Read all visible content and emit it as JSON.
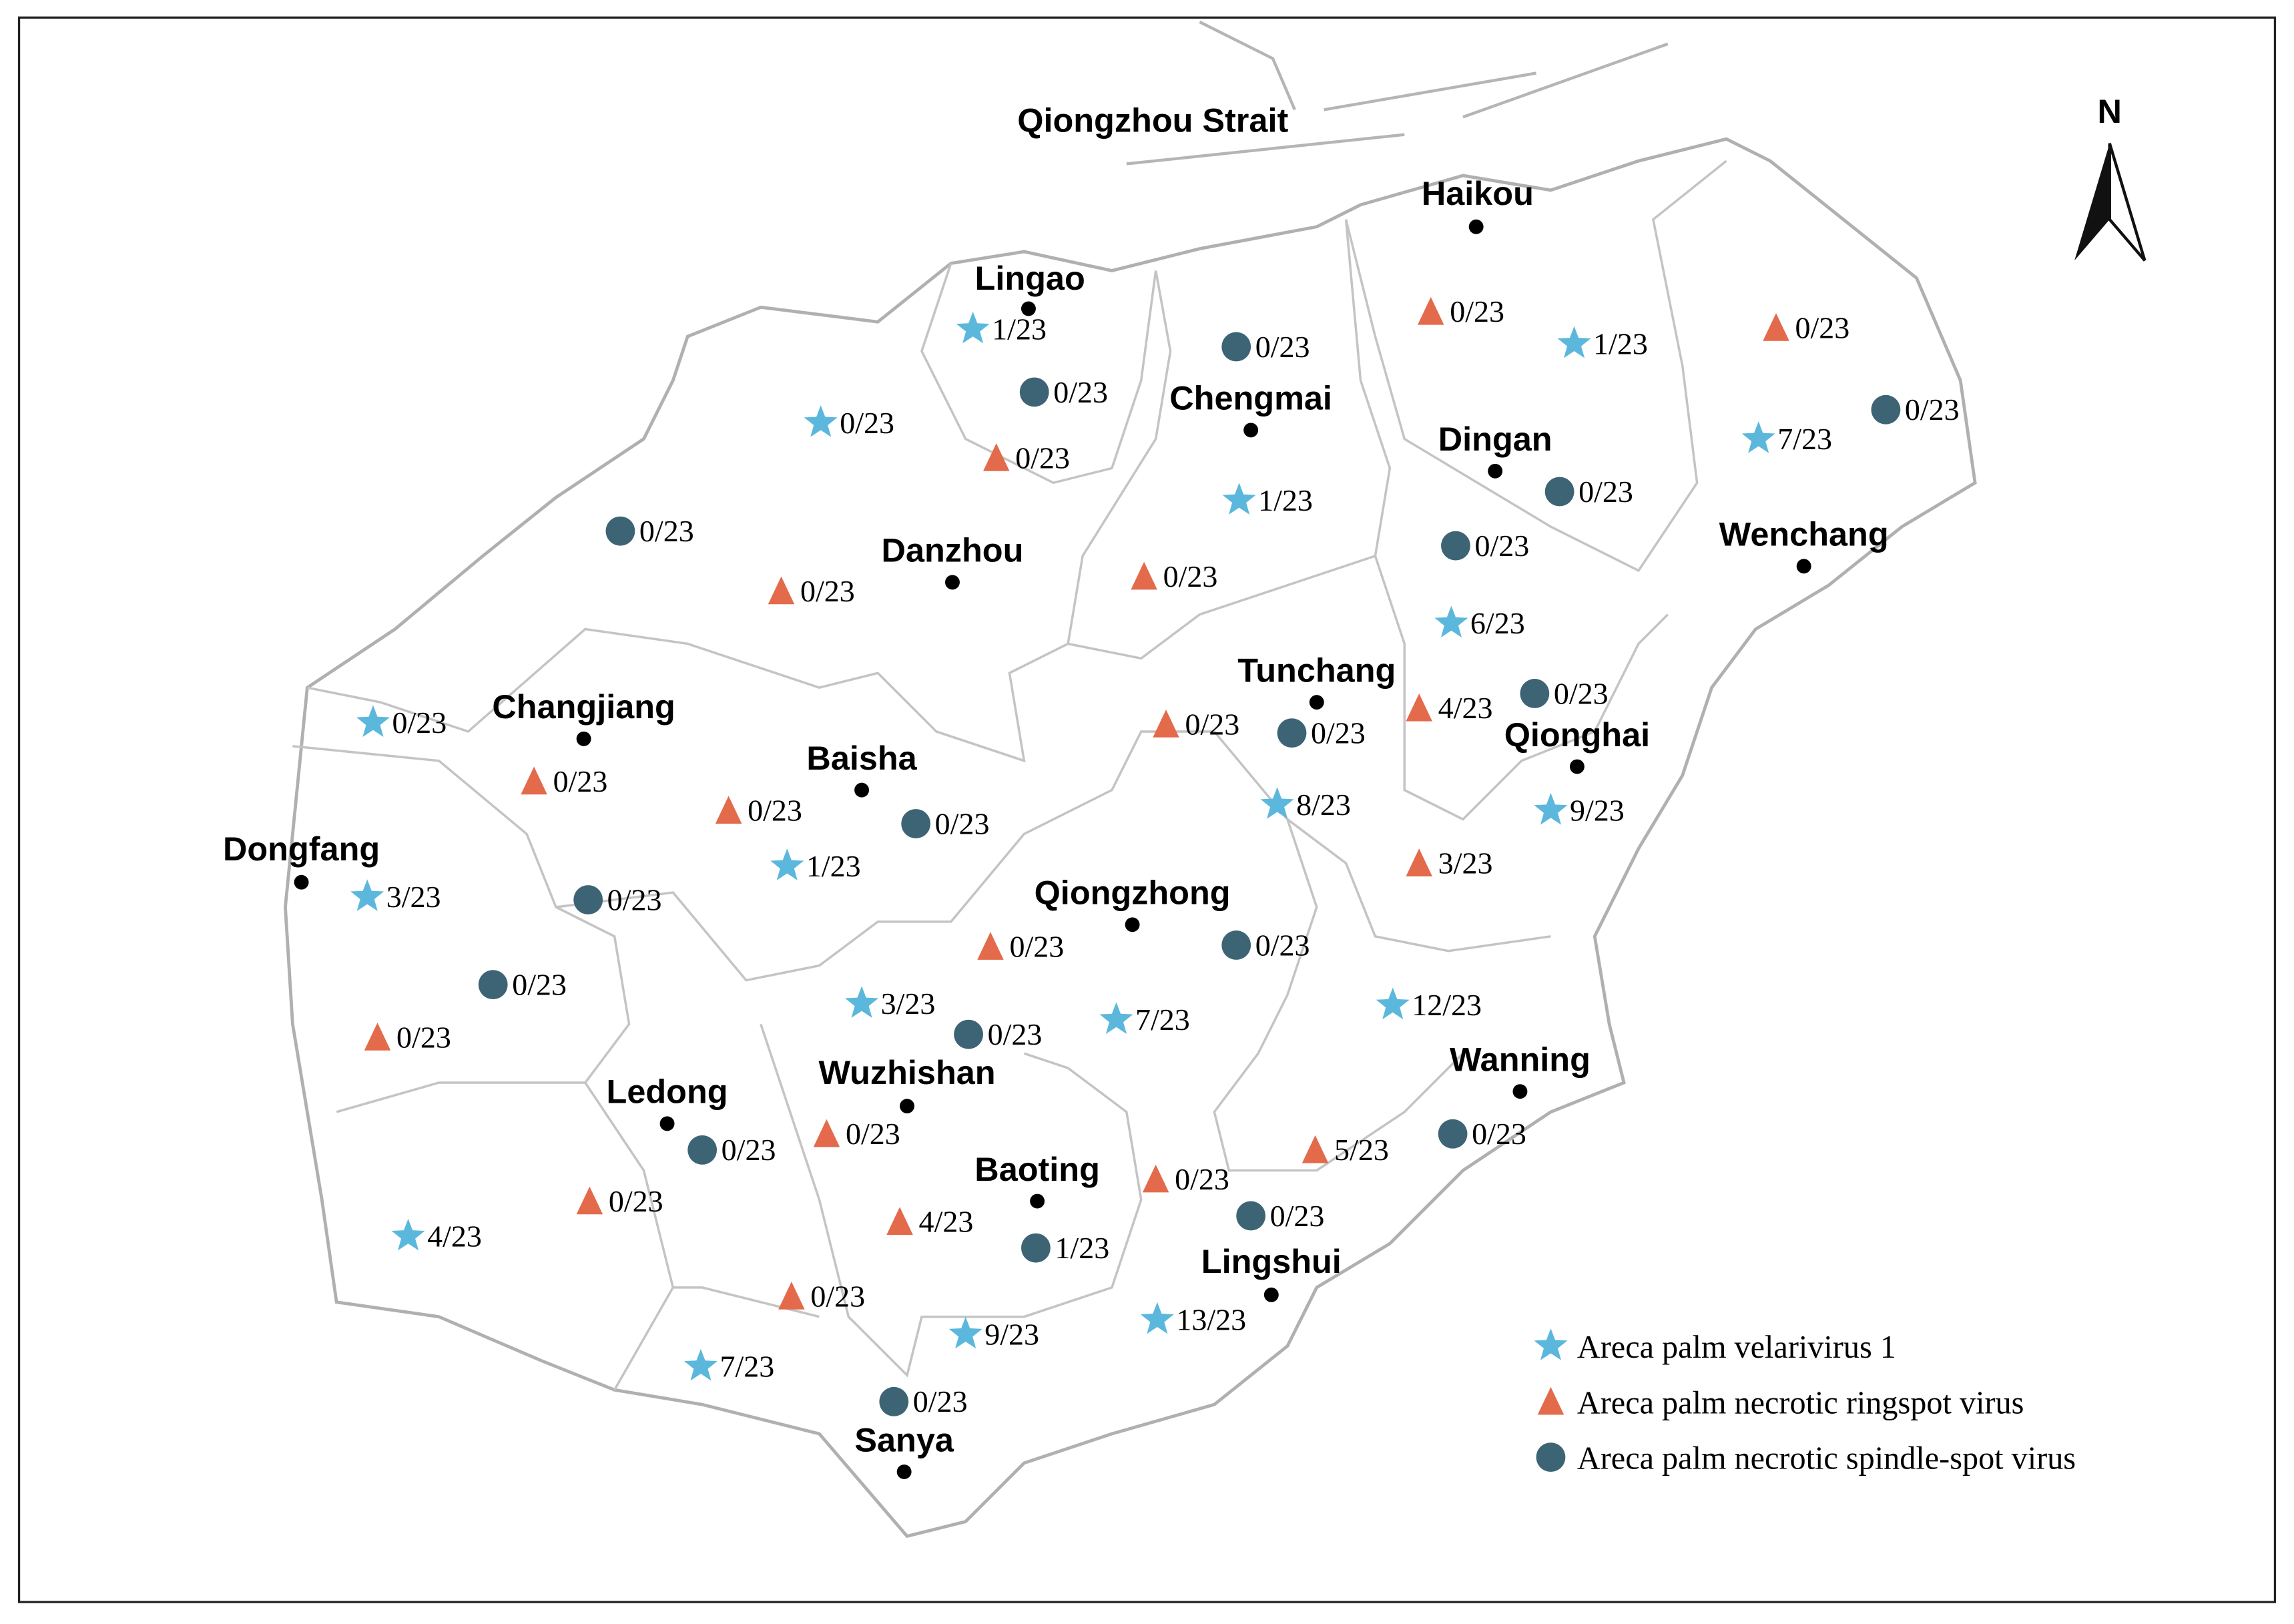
{
  "strait": "Qiongzhou Strait",
  "north": "N",
  "cities": [
    "Haikou",
    "Lingao",
    "Chengmai",
    "Dingan",
    "Danzhou",
    "Wenchang",
    "Tunchang",
    "Changjiang",
    "Qionghai",
    "Baisha",
    "Dongfang",
    "Qiongzhong",
    "Wanning",
    "Ledong",
    "Wuzhishan",
    "Baoting",
    "Lingshui",
    "Sanya"
  ],
  "series": [
    {
      "name": "Areca palm velarivirus 1",
      "color": "#5bb8dc",
      "sites": [
        "1/23",
        "0/23",
        "1/23",
        "7/23",
        "1/23",
        "6/23",
        "0/23",
        "8/23",
        "9/23",
        "1/23",
        "3/23",
        "12/23",
        "3/23",
        "7/23",
        "4/23",
        "9/23",
        "13/23",
        "7/23"
      ]
    },
    {
      "name": "Areca palm necrotic ringspot virus",
      "color": "#e36a4a",
      "sites": [
        "0/23",
        "0/23",
        "0/23",
        "0/23",
        "0/23",
        "0/23",
        "4/23",
        "0/23",
        "0/23",
        "3/23",
        "0/23",
        "0/23",
        "0/23",
        "0/23",
        "5/23",
        "0/23",
        "4/23",
        "0/23"
      ]
    },
    {
      "name": "Areca palm necrotic spindle-spot virus",
      "color": "#3d6475",
      "sites": [
        "0/23",
        "0/23",
        "0/23",
        "0/23",
        "0/23",
        "0/23",
        "0/23",
        "0/23",
        "0/23",
        "0/23",
        "0/23",
        "0/23",
        "0/23",
        "0/23",
        "0/23",
        "0/23",
        "1/23",
        "0/23"
      ]
    }
  ]
}
